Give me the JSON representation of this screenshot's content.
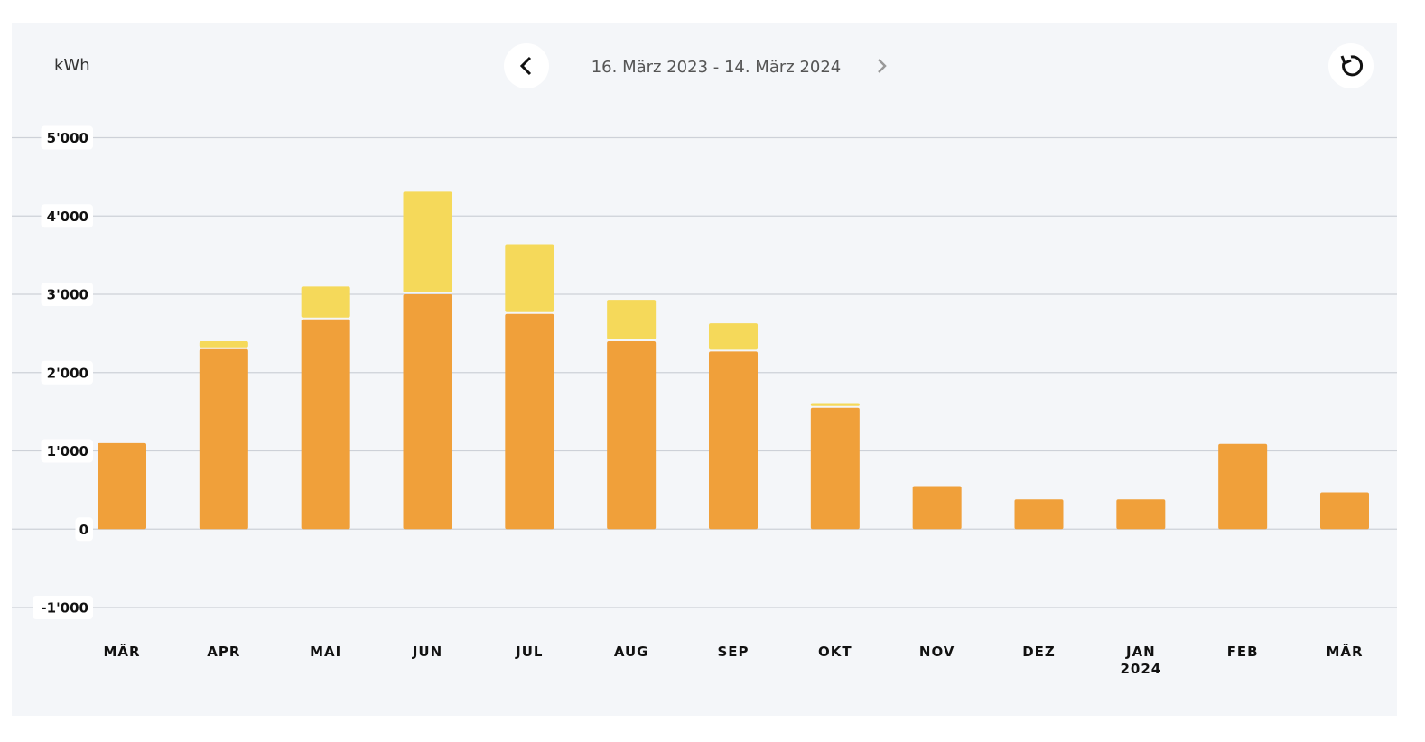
{
  "unit_label": "kWh",
  "date_range": "16. März 2023 - 14. März 2024",
  "chart_data": {
    "type": "stacked-bar",
    "categories": [
      "MÄR",
      "APR",
      "MAI",
      "JUN",
      "JUL",
      "AUG",
      "SEP",
      "OKT",
      "NOV",
      "DEZ",
      "JAN 2024",
      "FEB",
      "MÄR"
    ],
    "series": [
      {
        "color": "#f0a03a",
        "values": [
          1100,
          2300,
          2680,
          3000,
          2750,
          2400,
          2270,
          1550,
          550,
          380,
          380,
          1090,
          470
        ]
      },
      {
        "color": "#f5d95a",
        "values": [
          0,
          100,
          420,
          1310,
          890,
          530,
          360,
          50,
          0,
          0,
          0,
          0,
          0
        ]
      }
    ],
    "ylim": [
      -1000,
      5000
    ],
    "yticks": [
      {
        "value": -1000,
        "label": "-1'000"
      },
      0,
      {
        "value": 1000,
        "label": "1'000"
      },
      {
        "value": 2000,
        "label": "2'000"
      },
      {
        "value": 3000,
        "label": "3'000"
      },
      {
        "value": 4000,
        "label": "4'000"
      },
      {
        "value": 5000,
        "label": "5'000"
      }
    ],
    "grid": true
  }
}
